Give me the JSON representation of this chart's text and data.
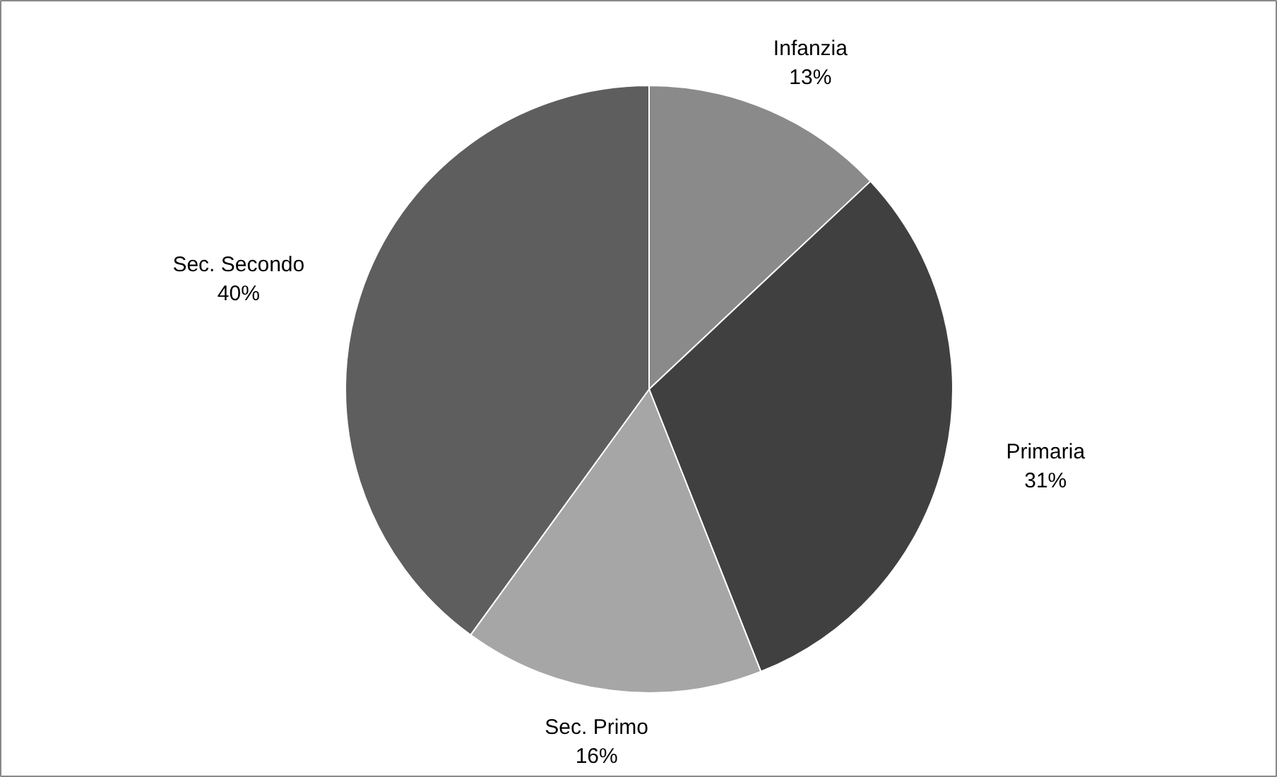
{
  "chart_data": {
    "type": "pie",
    "categories": [
      "Infanzia",
      "Primaria",
      "Sec. Primo",
      "Sec. Secondo"
    ],
    "values": [
      13,
      31,
      16,
      40
    ],
    "colors": [
      "#8a8a8a",
      "#404040",
      "#a6a6a6",
      "#5e5e5e"
    ],
    "value_labels": [
      "13%",
      "31%",
      "16%",
      "40%"
    ]
  }
}
